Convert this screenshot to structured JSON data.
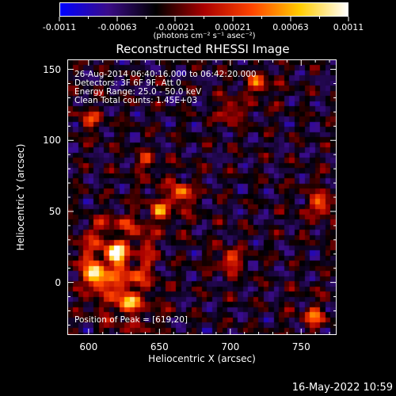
{
  "colorbar": {
    "ticks": [
      "-0.0011",
      "-0.00063",
      "-0.00021",
      "0.00021",
      "0.00063",
      "0.0011"
    ],
    "units": "(photons cm⁻² s⁻¹ asec⁻²)",
    "min": -0.0011,
    "max": 0.0011,
    "colors": [
      "#0000ff",
      "#3a0c88",
      "#000000",
      "#aa0000",
      "#ff4400",
      "#ffcc00",
      "#ffffff"
    ]
  },
  "chart_data": {
    "type": "heatmap",
    "title": "Reconstructed RHESSI Image",
    "xlabel": "Heliocentric X (arcsec)",
    "ylabel": "Heliocentric Y (arcsec)",
    "xlim": [
      585,
      775
    ],
    "ylim": [
      -37,
      157
    ],
    "xticks": [
      600,
      650,
      700,
      750
    ],
    "yticks": [
      0,
      50,
      100,
      150
    ],
    "info_lines": [
      "26-Aug-2014 06:40:16.000 to 06:42:20.000",
      "Detectors: 3F 6F 9F, Att 0",
      "Energy Range: 25.0 - 50.0 keV",
      "Clean    Total counts: 1.45E+03"
    ],
    "peak_label": "Position of Peak = [619,20]",
    "peak_position": [
      619,
      20
    ],
    "total_counts": "1.45E+03",
    "energy_range_kev": [
      25.0,
      50.0
    ],
    "detectors": [
      "3F",
      "6F",
      "9F"
    ],
    "attenuator": 0
  },
  "footer": {
    "timestamp": "16-May-2022 10:59"
  }
}
